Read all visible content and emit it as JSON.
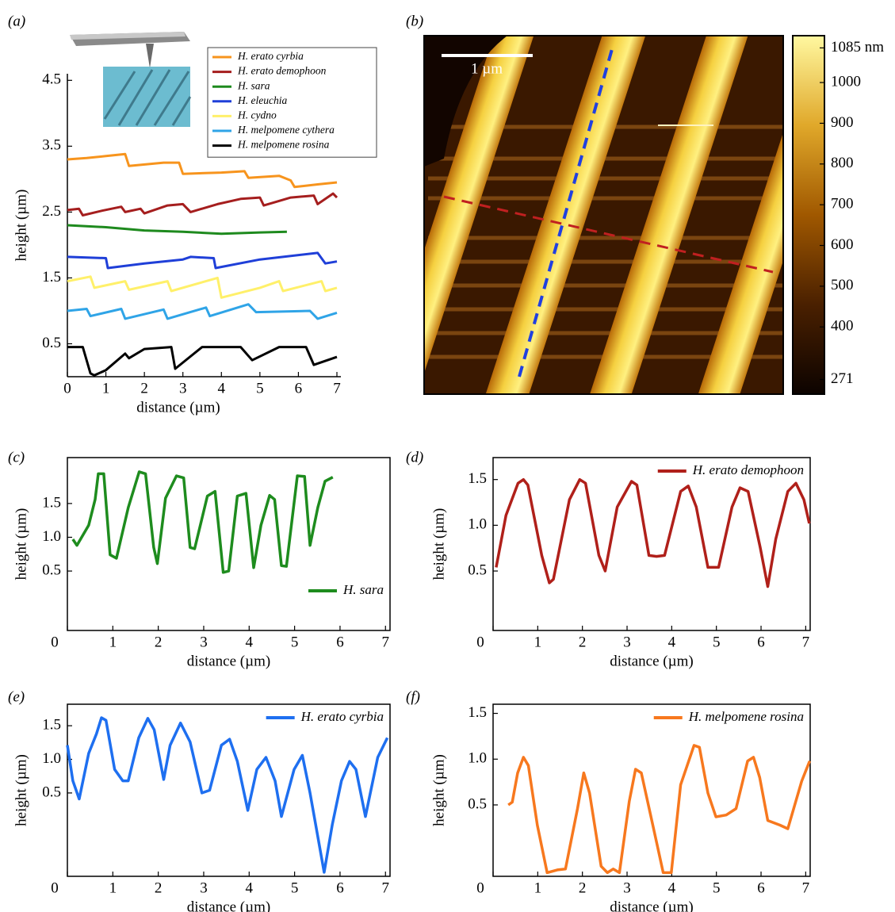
{
  "chart_data": [
    {
      "type": "line",
      "panel_label": "(a)",
      "xlabel": "distance (µm)",
      "ylabel": "height (µm)",
      "xlim": [
        0,
        7
      ],
      "ylim": [
        0,
        4.6
      ],
      "xticks": [
        0,
        1,
        2,
        3,
        4,
        5,
        6,
        7
      ],
      "yticks": [
        0.5,
        1.5,
        2.5,
        3.5,
        4.5
      ],
      "legend": "upper right",
      "legend_frame": true,
      "frame": false,
      "series": [
        {
          "name": "H. erato cyrbia",
          "color": "#f7941d",
          "x": [
            0,
            0.5,
            1,
            1.5,
            1.6,
            2.5,
            2.9,
            3.0,
            4,
            4.6,
            4.7,
            5.5,
            5.8,
            5.9,
            6.5,
            7
          ],
          "values": [
            3.3,
            3.32,
            3.35,
            3.38,
            3.2,
            3.25,
            3.25,
            3.08,
            3.1,
            3.12,
            3.02,
            3.05,
            2.98,
            2.88,
            2.92,
            2.95
          ]
        },
        {
          "name": "H. erato demophoon",
          "color": "#a51e1e",
          "x": [
            0,
            0.3,
            0.4,
            0.9,
            1.4,
            1.5,
            1.9,
            2.0,
            2.6,
            3.0,
            3.2,
            3.9,
            4.5,
            5.0,
            5.1,
            5.8,
            6.4,
            6.5,
            6.9,
            7
          ],
          "values": [
            2.53,
            2.55,
            2.45,
            2.52,
            2.58,
            2.5,
            2.55,
            2.48,
            2.6,
            2.62,
            2.5,
            2.62,
            2.7,
            2.72,
            2.6,
            2.72,
            2.75,
            2.62,
            2.78,
            2.72
          ]
        },
        {
          "name": "H. sara",
          "color": "#1e8a1e",
          "x": [
            0,
            1,
            2,
            3,
            4,
            5,
            5.7
          ],
          "values": [
            2.3,
            2.27,
            2.22,
            2.2,
            2.17,
            2.19,
            2.2
          ]
        },
        {
          "name": "H. eleuchia",
          "color": "#1f3fd8",
          "x": [
            0,
            1,
            1.05,
            2,
            3,
            3.2,
            3.8,
            3.85,
            5,
            6.5,
            6.7,
            7
          ],
          "values": [
            1.82,
            1.8,
            1.65,
            1.72,
            1.78,
            1.82,
            1.8,
            1.65,
            1.78,
            1.88,
            1.72,
            1.75
          ]
        },
        {
          "name": "H. cydno",
          "color": "#fff06a",
          "x": [
            0,
            0.6,
            0.7,
            1.5,
            1.6,
            2.6,
            2.7,
            3.9,
            4.0,
            5,
            5.5,
            5.6,
            6.6,
            6.7,
            7
          ],
          "values": [
            1.45,
            1.52,
            1.35,
            1.45,
            1.32,
            1.45,
            1.3,
            1.5,
            1.2,
            1.35,
            1.45,
            1.3,
            1.45,
            1.3,
            1.35
          ]
        },
        {
          "name": "H. melpomene cythera",
          "color": "#2fa4e7",
          "x": [
            0,
            0.5,
            0.6,
            1.4,
            1.5,
            2.5,
            2.6,
            3.6,
            3.7,
            4.7,
            4.9,
            6.3,
            6.5,
            7
          ],
          "values": [
            1.0,
            1.03,
            0.92,
            1.03,
            0.88,
            1.02,
            0.88,
            1.05,
            0.92,
            1.1,
            0.98,
            1.0,
            0.88,
            0.97
          ]
        },
        {
          "name": "H. melpomene rosina",
          "color": "#000000",
          "x": [
            0,
            0.4,
            0.6,
            0.7,
            1,
            1.5,
            1.6,
            2,
            2.7,
            2.8,
            3.5,
            4.5,
            4.8,
            5.5,
            6.2,
            6.4,
            7
          ],
          "values": [
            0.45,
            0.45,
            0.05,
            0.02,
            0.1,
            0.35,
            0.28,
            0.42,
            0.45,
            0.12,
            0.45,
            0.45,
            0.25,
            0.45,
            0.45,
            0.18,
            0.3
          ]
        }
      ]
    },
    {
      "type": "image",
      "panel_label": "(b)",
      "scale_bar": "1 µm",
      "clim": [
        235,
        1115
      ],
      "cticks": [
        {
          "value": 1085,
          "label": "1085 nm"
        },
        1000,
        900,
        800,
        700,
        600,
        500,
        400,
        271
      ]
    },
    {
      "type": "line",
      "panel_label": "(c)",
      "xlabel": "distance (µm)",
      "ylabel": "height (µm)",
      "xlim": [
        0,
        7.1
      ],
      "ylim": [
        -0.38,
        2.18
      ],
      "xticks": [
        0,
        1,
        2,
        3,
        4,
        5,
        6,
        7
      ],
      "yticks": [
        0.5,
        {
          "value": 1,
          "label": "1.0"
        },
        1.5
      ],
      "legend": "lower right",
      "frame": true,
      "x": [
        0.12,
        0.21,
        0.47,
        0.61,
        0.68,
        0.8,
        0.94,
        1.08,
        1.34,
        1.58,
        1.72,
        1.9,
        1.98,
        2.16,
        2.4,
        2.56,
        2.7,
        2.8,
        3.08,
        3.25,
        3.43,
        3.55,
        3.74,
        3.93,
        4.1,
        4.26,
        4.45,
        4.56,
        4.71,
        4.82,
        5.06,
        5.22,
        5.34,
        5.51,
        5.67,
        5.84
      ],
      "series": [
        {
          "name": "H. sara",
          "color": "#1e8c1e",
          "values": [
            0.97,
            0.88,
            1.18,
            1.56,
            1.94,
            1.94,
            0.74,
            0.69,
            1.44,
            1.97,
            1.94,
            0.85,
            0.61,
            1.58,
            1.91,
            1.88,
            0.85,
            0.83,
            1.61,
            1.68,
            0.48,
            0.5,
            1.61,
            1.65,
            0.55,
            1.18,
            1.62,
            1.56,
            0.58,
            0.57,
            1.91,
            1.9,
            0.88,
            1.44,
            1.83,
            1.89
          ]
        }
      ]
    },
    {
      "type": "line",
      "panel_label": "(d)",
      "xlabel": "distance (µm)",
      "ylabel": "height (µm)",
      "xlim": [
        0,
        7.1
      ],
      "ylim": [
        -0.15,
        1.74
      ],
      "xticks": [
        0,
        1,
        2,
        3,
        4,
        5,
        6,
        7
      ],
      "yticks": [
        0.5,
        {
          "value": 1,
          "label": "1.0"
        },
        1.5
      ],
      "legend": "upper right",
      "frame": true,
      "x": [
        0.07,
        0.29,
        0.56,
        0.68,
        0.78,
        1.09,
        1.26,
        1.35,
        1.71,
        1.94,
        2.07,
        2.37,
        2.51,
        2.78,
        3.1,
        3.22,
        3.49,
        3.66,
        3.84,
        4.2,
        4.37,
        4.55,
        4.81,
        5.05,
        5.35,
        5.53,
        5.71,
        5.98,
        6.15,
        6.33,
        6.6,
        6.78,
        6.96,
        7.08
      ],
      "series": [
        {
          "name": "H. erato demophoon",
          "color": "#b0201a",
          "values": [
            0.54,
            1.11,
            1.46,
            1.5,
            1.44,
            0.67,
            0.37,
            0.41,
            1.28,
            1.5,
            1.46,
            0.67,
            0.5,
            1.2,
            1.48,
            1.44,
            0.67,
            0.66,
            0.67,
            1.37,
            1.43,
            1.2,
            0.54,
            0.54,
            1.2,
            1.41,
            1.37,
            0.76,
            0.33,
            0.85,
            1.37,
            1.46,
            1.28,
            1.02
          ]
        }
      ]
    },
    {
      "type": "line",
      "panel_label": "(e)",
      "xlabel": "distance (µm)",
      "ylabel": "height (µm)",
      "xlim": [
        0,
        7.1
      ],
      "ylim": [
        -0.74,
        1.82
      ],
      "xticks": [
        0,
        1,
        2,
        3,
        4,
        5,
        6,
        7
      ],
      "yticks": [
        0.5,
        {
          "value": 1,
          "label": "1.0"
        },
        1.5
      ],
      "legend": "upper right",
      "frame": true,
      "x": [
        0,
        0.12,
        0.26,
        0.47,
        0.64,
        0.75,
        0.85,
        1.04,
        1.22,
        1.34,
        1.57,
        1.77,
        1.91,
        2.12,
        2.26,
        2.49,
        2.7,
        2.96,
        3.13,
        3.39,
        3.57,
        3.74,
        3.97,
        4.17,
        4.37,
        4.57,
        4.71,
        4.99,
        5.17,
        5.34,
        5.65,
        5.83,
        6.03,
        6.21,
        6.35,
        6.56,
        6.83,
        7.04
      ],
      "series": [
        {
          "name": "H. erato cyrbia",
          "color": "#1e6ff0",
          "values": [
            1.21,
            0.68,
            0.41,
            1.09,
            1.38,
            1.62,
            1.58,
            0.85,
            0.68,
            0.68,
            1.32,
            1.61,
            1.44,
            0.7,
            1.21,
            1.54,
            1.26,
            0.5,
            0.54,
            1.21,
            1.3,
            0.97,
            0.24,
            0.85,
            1.03,
            0.68,
            0.15,
            0.85,
            1.06,
            0.5,
            -0.68,
            0.03,
            0.68,
            0.97,
            0.85,
            0.15,
            1.03,
            1.32
          ]
        }
      ]
    },
    {
      "type": "line",
      "panel_label": "(f)",
      "xlabel": "distance (µm)",
      "ylabel": "height (µm)",
      "xlim": [
        0,
        7.1
      ],
      "ylim": [
        -0.28,
        1.6
      ],
      "xticks": [
        0,
        1,
        2,
        3,
        4,
        5,
        6,
        7
      ],
      "yticks": [
        0.5,
        {
          "value": 1,
          "label": "1.0"
        },
        1.5
      ],
      "legend": "upper right",
      "frame": true,
      "x": [
        0.34,
        0.43,
        0.55,
        0.68,
        0.79,
        0.99,
        1.21,
        1.44,
        1.62,
        1.89,
        2.03,
        2.16,
        2.42,
        2.56,
        2.69,
        2.83,
        3.05,
        3.19,
        3.32,
        3.67,
        3.81,
        3.99,
        4.2,
        4.5,
        4.62,
        4.81,
        4.99,
        5.22,
        5.44,
        5.7,
        5.83,
        5.97,
        6.15,
        6.42,
        6.6,
        6.73,
        6.91,
        7.09
      ],
      "series": [
        {
          "name": "H. melpomene rosina",
          "color": "#f7781e",
          "values": [
            0.5,
            0.53,
            0.85,
            1.02,
            0.93,
            0.28,
            -0.24,
            -0.21,
            -0.2,
            0.46,
            0.85,
            0.63,
            -0.17,
            -0.24,
            -0.2,
            -0.24,
            0.54,
            0.89,
            0.85,
            0.07,
            -0.24,
            -0.24,
            0.72,
            1.15,
            1.13,
            0.63,
            0.37,
            0.39,
            0.46,
            0.98,
            1.02,
            0.8,
            0.33,
            0.28,
            0.24,
            0.46,
            0.76,
            0.98
          ]
        }
      ]
    }
  ]
}
